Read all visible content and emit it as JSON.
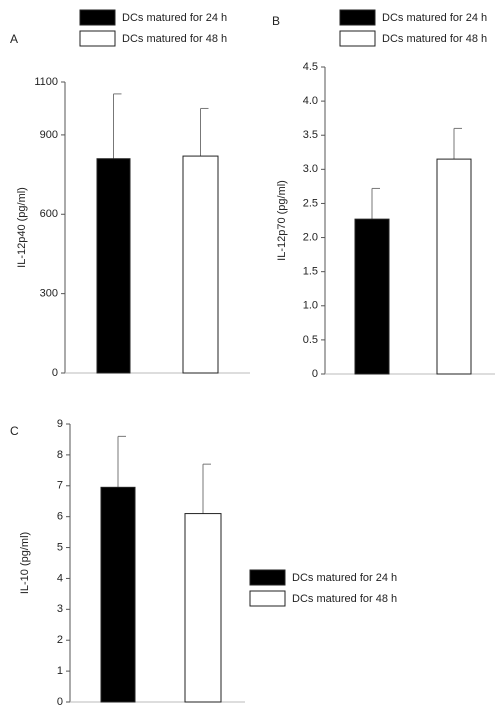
{
  "chart_data": [
    {
      "type": "bar",
      "panel_label": "A",
      "ylabel": "IL-12p40 (pg/ml)",
      "ylim": [
        0,
        1100
      ],
      "yticks": [
        0,
        300,
        600,
        900,
        1100
      ],
      "series": [
        {
          "name": "DCs matured for 24 h",
          "color": "#000000",
          "values": [
            810
          ],
          "errors": [
            245
          ]
        },
        {
          "name": "DCs matured for 48 h",
          "color": "#ffffff",
          "values": [
            820
          ],
          "errors": [
            180
          ]
        }
      ]
    },
    {
      "type": "bar",
      "panel_label": "B",
      "ylabel": "IL-12p70 (pg/ml)",
      "ylim": [
        0,
        4.5
      ],
      "yticks": [
        0,
        0.5,
        {
          "value": 1,
          "label": "1.0"
        },
        1.5,
        {
          "value": 2,
          "label": "2.0"
        },
        2.5,
        {
          "value": 3,
          "label": "3.0"
        },
        3.5,
        {
          "value": 4,
          "label": "4.0"
        },
        4.5
      ],
      "series": [
        {
          "name": "DCs matured for 24 h",
          "color": "#000000",
          "values": [
            2.27
          ],
          "errors": [
            0.45
          ]
        },
        {
          "name": "DCs matured for 48 h",
          "color": "#ffffff",
          "values": [
            3.15
          ],
          "errors": [
            0.45
          ]
        }
      ]
    },
    {
      "type": "bar",
      "panel_label": "C",
      "ylabel": "IL-10 (pg/ml)",
      "ylim": [
        0,
        9
      ],
      "yticks": [
        0,
        1,
        2,
        3,
        4,
        5,
        6,
        7,
        8,
        9
      ],
      "series": [
        {
          "name": "DCs matured for 24 h",
          "color": "#000000",
          "values": [
            6.95
          ],
          "errors": [
            1.65
          ]
        },
        {
          "name": "DCs matured for 48 h",
          "color": "#ffffff",
          "values": [
            6.1
          ],
          "errors": [
            1.6
          ]
        }
      ]
    }
  ]
}
